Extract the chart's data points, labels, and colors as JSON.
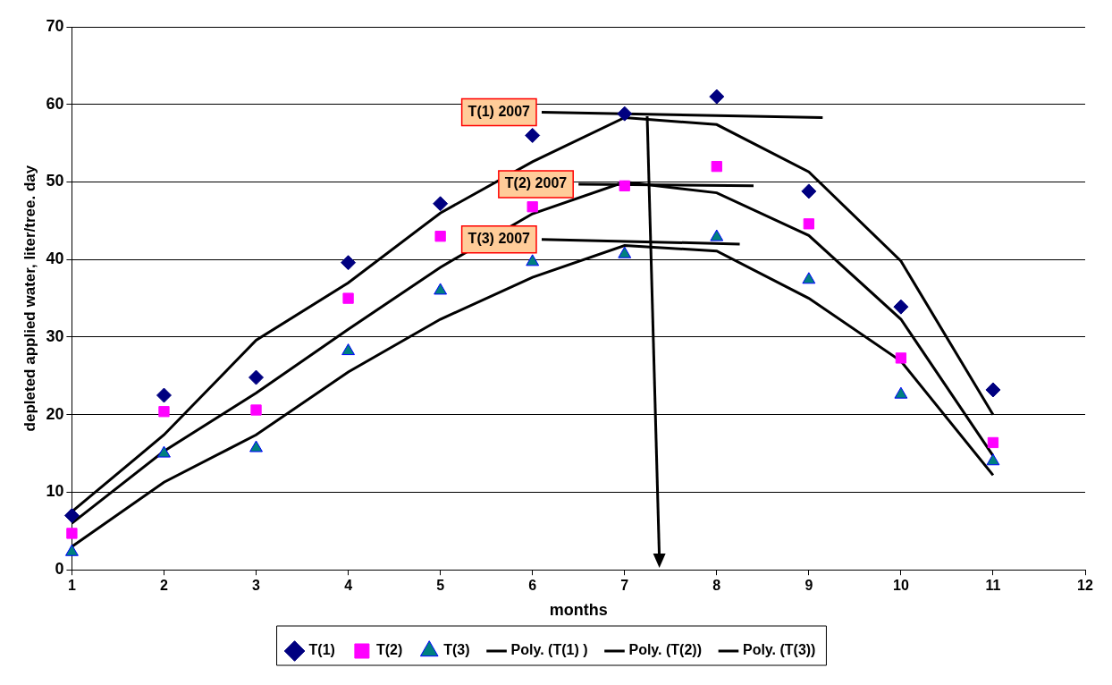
{
  "chart_data": {
    "type": "scatter",
    "xlabel": "months",
    "ylabel": "depleted applied water, liter/tree. day",
    "x": [
      1,
      2,
      3,
      4,
      5,
      6,
      7,
      8,
      9,
      10,
      11
    ],
    "series": [
      {
        "name": "T(1)",
        "marker": "diamond",
        "color": "#000080",
        "values": [
          7,
          22.5,
          24.8,
          39.6,
          47.2,
          56,
          58.8,
          61,
          48.8,
          33.9,
          23.2
        ]
      },
      {
        "name": "T(2)",
        "marker": "square",
        "color": "#ff00ff",
        "values": [
          4.7,
          20.4,
          20.6,
          35,
          43,
          46.8,
          49.5,
          52,
          44.6,
          27.3,
          16.4
        ]
      },
      {
        "name": "T(3)",
        "marker": "triangle",
        "color": "#008080",
        "values": [
          2.3,
          15,
          15.7,
          28.2,
          36,
          39.7,
          40.7,
          42.9,
          37.4,
          22.6,
          14
        ]
      },
      {
        "name": "Poly. (T(1) )",
        "type": "line",
        "marker": "none",
        "color": "#000000",
        "values": [
          7.5,
          17.4,
          29.6,
          37,
          46,
          52.6,
          58.3,
          57.4,
          51.3,
          39.8,
          20
        ]
      },
      {
        "name": "Poly. (T(2))",
        "type": "line",
        "marker": "none",
        "color": "#000000",
        "values": [
          6,
          15.3,
          22.8,
          31,
          39,
          45.9,
          50,
          48.6,
          43.1,
          32.3,
          14.7
        ]
      },
      {
        "name": "Poly. (T(3))",
        "type": "line",
        "marker": "none",
        "color": "#000000",
        "values": [
          3,
          11.3,
          17.4,
          25.5,
          32.3,
          37.7,
          41.8,
          41.1,
          35,
          26.9,
          12.2
        ]
      },
      {
        "type": "line",
        "marker": "none",
        "color": "#000000",
        "x": [
          6.1,
          9.15
        ],
        "values": [
          59,
          58.3
        ]
      },
      {
        "type": "line",
        "marker": "none",
        "color": "#000000",
        "x": [
          6.5,
          8.4
        ],
        "values": [
          49.7,
          49.5
        ]
      },
      {
        "type": "line",
        "marker": "none",
        "color": "#000000",
        "x": [
          6.1,
          8.25
        ],
        "values": [
          42.6,
          42
        ]
      }
    ],
    "annotations": [
      "T(1) 2007",
      "T(2) 2007",
      "T(3) 2007"
    ],
    "xlim": [
      1,
      12
    ],
    "xticks": [
      1,
      2,
      3,
      4,
      5,
      6,
      7,
      8,
      9,
      10,
      11,
      12
    ],
    "ylim": [
      0,
      70
    ],
    "yticks": [
      0,
      10,
      20,
      30,
      40,
      50,
      60,
      70
    ],
    "grid": "y",
    "legend": "bottom"
  }
}
